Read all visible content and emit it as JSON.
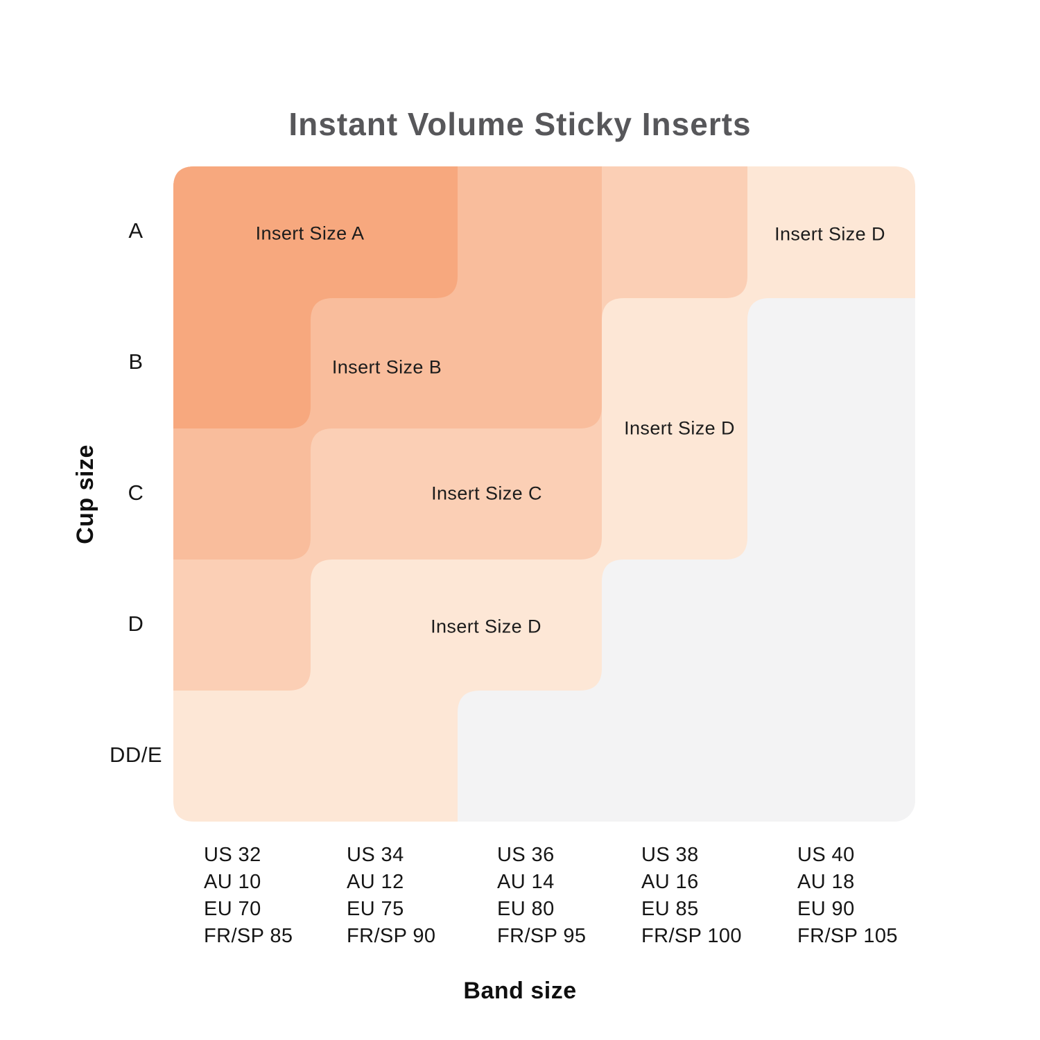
{
  "title": "Instant Volume Sticky Inserts",
  "y_axis": {
    "label": "Cup size",
    "ticks": [
      "A",
      "B",
      "C",
      "D",
      "DD/E"
    ]
  },
  "x_axis": {
    "label": "Band size",
    "ticks": [
      {
        "us": "US 32",
        "au": "AU 10",
        "eu": "EU 70",
        "frsp": "FR/SP 85"
      },
      {
        "us": "US 34",
        "au": "AU 12",
        "eu": "EU 75",
        "frsp": "FR/SP 90"
      },
      {
        "us": "US 36",
        "au": "AU 14",
        "eu": "EU 80",
        "frsp": "FR/SP 95"
      },
      {
        "us": "US 38",
        "au": "AU 16",
        "eu": "EU 85",
        "frsp": "FR/SP 100"
      },
      {
        "us": "US 40",
        "au": "AU 18",
        "eu": "EU 90",
        "frsp": "FR/SP 105"
      }
    ]
  },
  "region_labels": {
    "a": "Insert Size A",
    "b": "Insert Size B",
    "c": "Insert Size C",
    "d_top_right": "Insert Size D",
    "d_middle": "Insert Size D",
    "d_bottom": "Insert Size D"
  },
  "colors": {
    "insert_a": "#F7A87E",
    "insert_b": "#F9BD9C",
    "insert_c": "#FBCFB5",
    "insert_d": "#FDE7D6",
    "unavailable": "#F3F3F4",
    "title_text": "#57575A",
    "label_text": "#1C1C1C",
    "background": "#FFFFFF"
  },
  "chart_data": {
    "type": "heatmap",
    "title": "Instant Volume Sticky Inserts",
    "xlabel": "Band size",
    "ylabel": "Cup size",
    "columns": [
      "US 32 / AU 10 / EU 70 / FR-SP 85",
      "US 34 / AU 12 / EU 75 / FR-SP 90",
      "US 36 / AU 14 / EU 80 / FR-SP 95",
      "US 38 / AU 16 / EU 85 / FR-SP 100",
      "US 40 / AU 18 / EU 90 / FR-SP 105"
    ],
    "rows": [
      "A",
      "B",
      "C",
      "D",
      "DD/E"
    ],
    "values": [
      [
        "A",
        "A",
        "B",
        "C",
        "D"
      ],
      [
        "A",
        "B",
        "B",
        "D",
        null
      ],
      [
        "B",
        "C",
        "C",
        "D",
        null
      ],
      [
        "C",
        "D",
        "D",
        null,
        null
      ],
      [
        "D",
        "D",
        null,
        null,
        null
      ]
    ],
    "legend": {
      "A": "#F7A87E",
      "B": "#F9BD9C",
      "C": "#FBCFB5",
      "D": "#FDE7D6",
      "unavailable": "#F3F3F4"
    },
    "grid": false,
    "legend_position": "in-chart-labels"
  }
}
